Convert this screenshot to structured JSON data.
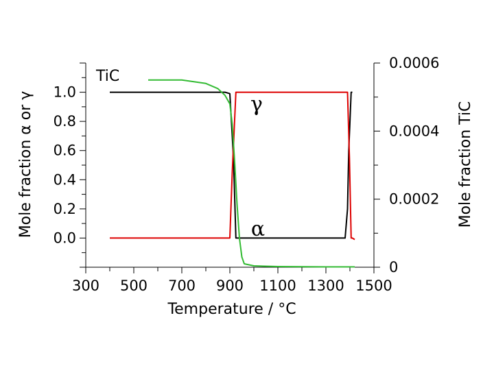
{
  "chart_data": {
    "type": "line",
    "xlabel": "Temperature / °C",
    "ylabel_left": "Mole fraction α or γ",
    "ylabel_right": "Mole fraction TiC",
    "xlim": [
      300,
      1500
    ],
    "ylim_left": [
      -0.2,
      1.2
    ],
    "ylim_right": [
      0,
      0.0006
    ],
    "x_ticks": [
      300,
      500,
      700,
      900,
      1100,
      1300,
      1500
    ],
    "x_tick_labels": [
      "300",
      "500",
      "700",
      "900",
      "1100",
      "1300",
      "1500"
    ],
    "y_left_ticks": [
      0.0,
      0.2,
      0.4,
      0.6,
      0.8,
      1.0
    ],
    "y_left_tick_labels": [
      "0.0",
      "0.2",
      "0.4",
      "0.6",
      "0.8",
      "1.0"
    ],
    "y_right_ticks": [
      0,
      0.0002,
      0.0004,
      0.0006
    ],
    "y_right_tick_labels": [
      "0",
      "0.0002",
      "0.0004",
      "0.0006"
    ],
    "grid": false,
    "annotations": {
      "gamma": "γ",
      "alpha": "α",
      "tic": "TiC"
    },
    "series": [
      {
        "axis": "left",
        "color": "#000000",
        "x": [
          400,
          880,
          900,
          915,
          925,
          940,
          1300,
          1370,
          1380,
          1390,
          1395,
          1405,
          1410
        ],
        "y": [
          1.0,
          1.0,
          0.99,
          0.55,
          0.0,
          0.0,
          0.0,
          0.0,
          0.0,
          0.2,
          0.6,
          1.0,
          1.0
        ]
      },
      {
        "axis": "left",
        "color": "#dd0000",
        "x": [
          400,
          900,
          910,
          925,
          940,
          1380,
          1390,
          1398,
          1405,
          1410,
          1420
        ],
        "y": [
          0.0,
          0.0,
          0.45,
          1.0,
          1.0,
          1.0,
          1.0,
          0.55,
          0.0,
          0.0,
          -0.01
        ]
      },
      {
        "axis": "right",
        "color": "#33bb33",
        "x": [
          560,
          700,
          800,
          850,
          880,
          900,
          910,
          920,
          930,
          940,
          950,
          960,
          1000,
          1100,
          1300,
          1420
        ],
        "y": [
          0.00055,
          0.00055,
          0.00054,
          0.000525,
          0.000505,
          0.00048,
          0.00042,
          0.00031,
          0.000185,
          8.5e-05,
          3e-05,
          1e-05,
          4e-06,
          2e-06,
          1e-06,
          1e-06
        ]
      }
    ]
  }
}
